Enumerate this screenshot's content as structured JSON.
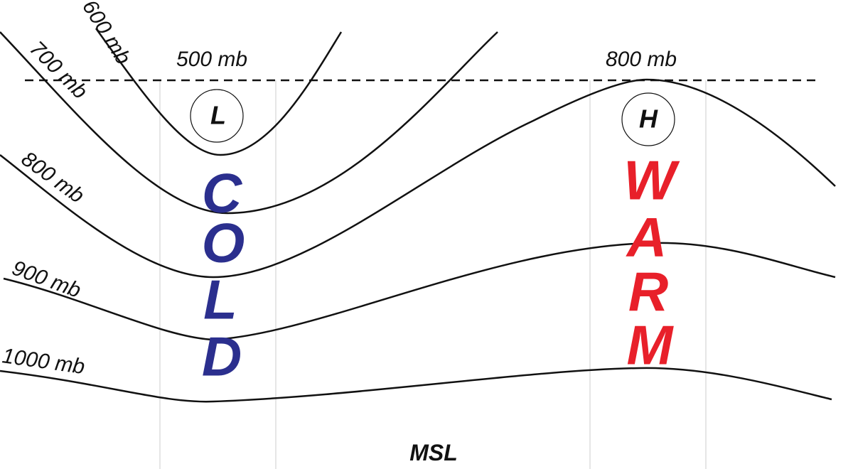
{
  "isobars": {
    "p600": "600 mb",
    "p700": "700 mb",
    "p800": "800 mb",
    "p900": "900 mb",
    "p1000": "1000 mb",
    "p500_top": "500 mb",
    "p800_top": "800 mb"
  },
  "centers": {
    "low": "L",
    "high": "H"
  },
  "cold": [
    "C",
    "O",
    "L",
    "D"
  ],
  "warm": [
    "W",
    "A",
    "R",
    "M"
  ],
  "ground": "MSL"
}
